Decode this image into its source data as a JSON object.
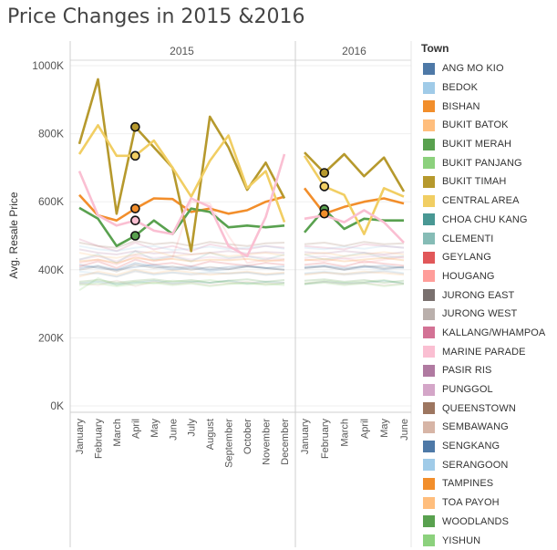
{
  "title": "Price Changes in 2015 &2016",
  "chart_data": {
    "type": "line",
    "title": "Price Changes in 2015 &2016",
    "ylabel": "Avg. Resale Price",
    "xlabel": "",
    "ylim": [
      0,
      1000000
    ],
    "yticks": [
      {
        "value": 0,
        "label": "0K"
      },
      {
        "value": 200000,
        "label": "200K"
      },
      {
        "value": 400000,
        "label": "400K"
      },
      {
        "value": 600000,
        "label": "600K"
      },
      {
        "value": 800000,
        "label": "800K"
      },
      {
        "value": 1000000,
        "label": "1000K"
      }
    ],
    "grid": true,
    "legend_position": "right",
    "legend_title": "Town",
    "panels": [
      {
        "label": "2015",
        "months": [
          "January",
          "February",
          "March",
          "April",
          "May",
          "June",
          "July",
          "August",
          "September",
          "October",
          "November",
          "December"
        ]
      },
      {
        "label": "2016",
        "months": [
          "January",
          "February",
          "March",
          "April",
          "May",
          "June"
        ]
      }
    ],
    "series": [
      {
        "name": "ANG MO KIO",
        "color": "#4e79a7",
        "values": [
          [
            415000,
            405000,
            400000,
            420000,
            410000,
            400000,
            405000,
            398000,
            402000,
            410000,
            405000,
            400000
          ],
          [
            405000,
            410000,
            400000,
            408000,
            412000,
            405000
          ]
        ]
      },
      {
        "name": "BEDOK",
        "color": "#a0cbe8",
        "values": [
          [
            395000,
            390000,
            380000,
            398000,
            385000,
            392000,
            388000,
            395000,
            390000,
            392000,
            385000,
            388000
          ],
          [
            390000,
            395000,
            388000,
            392000,
            398000,
            390000
          ]
        ]
      },
      {
        "name": "BISHAN",
        "color": "#f28e2b",
        "values": [
          [
            620000,
            560000,
            545000,
            580000,
            610000,
            608000,
            570000,
            580000,
            565000,
            575000,
            600000,
            615000
          ],
          [
            640000,
            565000,
            585000,
            600000,
            610000,
            595000
          ]
        ]
      },
      {
        "name": "BUKIT BATOK",
        "color": "#ffbe7d",
        "values": [
          [
            380000,
            395000,
            385000,
            400000,
            390000,
            398000,
            392000,
            385000,
            390000,
            395000,
            388000,
            392000
          ],
          [
            385000,
            392000,
            388000,
            395000,
            390000,
            385000
          ]
        ]
      },
      {
        "name": "BUKIT MERAH",
        "color": "#59a14f",
        "values": [
          [
            582000,
            550000,
            470000,
            500000,
            545000,
            505000,
            580000,
            570000,
            525000,
            530000,
            525000,
            530000
          ],
          [
            510000,
            578000,
            520000,
            550000,
            545000,
            545000
          ]
        ]
      },
      {
        "name": "BUKIT PANJANG",
        "color": "#8cd17d",
        "values": [
          [
            340000,
            375000,
            355000,
            365000,
            360000,
            368000,
            365000,
            370000,
            362000,
            358000,
            360000,
            355000
          ],
          [
            360000,
            368000,
            362000,
            365000,
            370000,
            360000
          ]
        ]
      },
      {
        "name": "BUKIT TIMAH",
        "color": "#b6992d",
        "values": [
          [
            770000,
            960000,
            565000,
            820000,
            760000,
            700000,
            455000,
            850000,
            760000,
            635000,
            715000,
            610000
          ],
          [
            745000,
            685000,
            740000,
            675000,
            730000,
            630000
          ]
        ]
      },
      {
        "name": "CENTRAL AREA",
        "color": "#f1ce63",
        "values": [
          [
            740000,
            825000,
            735000,
            735000,
            780000,
            700000,
            615000,
            720000,
            795000,
            640000,
            690000,
            540000
          ],
          [
            735000,
            645000,
            620000,
            505000,
            640000,
            615000
          ]
        ]
      },
      {
        "name": "CHOA CHU KANG",
        "color": "#499894",
        "values": [
          [
            360000,
            365000,
            358000,
            362000,
            368000,
            360000,
            365000,
            362000,
            368000,
            360000,
            365000,
            362000
          ],
          [
            358000,
            365000,
            360000,
            362000,
            368000,
            360000
          ]
        ]
      },
      {
        "name": "CLEMENTI",
        "color": "#86bcb6",
        "values": [
          [
            430000,
            445000,
            420000,
            455000,
            430000,
            440000,
            425000,
            450000,
            435000,
            440000,
            430000,
            445000
          ],
          [
            445000,
            430000,
            440000,
            450000,
            435000,
            440000
          ]
        ]
      },
      {
        "name": "GEYLANG",
        "color": "#e15759",
        "values": [
          [
            410000,
            425000,
            405000,
            430000,
            415000,
            420000,
            410000,
            425000,
            418000,
            412000,
            420000,
            415000
          ],
          [
            415000,
            420000,
            410000,
            425000,
            418000,
            412000
          ]
        ]
      },
      {
        "name": "HOUGANG",
        "color": "#ff9d9a",
        "values": [
          [
            420000,
            430000,
            415000,
            440000,
            425000,
            435000,
            600000,
            595000,
            500000,
            420000,
            430000,
            425000
          ],
          [
            430000,
            425000,
            435000,
            420000,
            430000,
            438000
          ]
        ]
      },
      {
        "name": "JURONG EAST",
        "color": "#79706e",
        "values": [
          [
            400000,
            410000,
            395000,
            415000,
            405000,
            410000,
            400000,
            408000,
            402000,
            410000,
            405000,
            400000
          ],
          [
            405000,
            410000,
            400000,
            412000,
            405000,
            408000
          ]
        ]
      },
      {
        "name": "JURONG WEST",
        "color": "#bab0ac",
        "values": [
          [
            385000,
            390000,
            380000,
            395000,
            388000,
            392000,
            385000,
            390000,
            388000,
            392000,
            385000,
            390000
          ],
          [
            388000,
            392000,
            385000,
            390000,
            395000,
            388000
          ]
        ]
      },
      {
        "name": "KALLANG/WHAMPOA",
        "color": "#d37295",
        "values": [
          [
            490000,
            470000,
            455000,
            480000,
            460000,
            470000,
            455000,
            475000,
            465000,
            460000,
            470000,
            465000
          ],
          [
            470000,
            465000,
            460000,
            475000,
            470000,
            465000
          ]
        ]
      },
      {
        "name": "MARINE PARADE",
        "color": "#fabfd2",
        "values": [
          [
            690000,
            560000,
            530000,
            545000,
            515000,
            505000,
            610000,
            585000,
            470000,
            440000,
            555000,
            740000
          ],
          [
            550000,
            560000,
            540000,
            575000,
            540000,
            480000
          ]
        ]
      },
      {
        "name": "PASIR RIS",
        "color": "#b07aa1",
        "values": [
          [
            460000,
            450000,
            445000,
            455000,
            448000,
            452000,
            445000,
            450000,
            455000,
            448000,
            452000,
            450000
          ],
          [
            452000,
            448000,
            455000,
            450000,
            445000,
            452000
          ]
        ]
      },
      {
        "name": "PUNGGOL",
        "color": "#d4a6c8",
        "values": [
          [
            430000,
            440000,
            425000,
            445000,
            435000,
            440000,
            430000,
            438000,
            432000,
            440000,
            435000,
            432000
          ],
          [
            435000,
            440000,
            432000,
            438000,
            442000,
            435000
          ]
        ]
      },
      {
        "name": "QUEENSTOWN",
        "color": "#9d7660",
        "values": [
          [
            480000,
            470000,
            465000,
            485000,
            475000,
            480000,
            470000,
            482000,
            475000,
            470000,
            478000,
            480000
          ],
          [
            475000,
            480000,
            470000,
            482000,
            475000,
            478000
          ]
        ]
      },
      {
        "name": "SEMBAWANG",
        "color": "#d7b5a6",
        "values": [
          [
            360000,
            355000,
            368000,
            352000,
            365000,
            358000,
            362000,
            355000,
            360000,
            365000,
            358000,
            362000
          ],
          [
            360000,
            365000,
            358000,
            362000,
            355000,
            360000
          ]
        ]
      },
      {
        "name": "SENGKANG",
        "color": "#4e79a7",
        "values": [
          [
            405000,
            412000,
            400000,
            408000,
            415000,
            405000,
            410000,
            402000,
            408000,
            412000,
            405000,
            410000
          ],
          [
            408000,
            412000,
            405000,
            410000,
            402000,
            408000
          ]
        ]
      },
      {
        "name": "SERANGOON",
        "color": "#a0cbe8",
        "values": [
          [
            470000,
            460000,
            455000,
            465000,
            470000,
            458000,
            462000,
            468000,
            460000,
            465000,
            470000,
            462000
          ],
          [
            465000,
            460000,
            468000,
            462000,
            470000,
            465000
          ]
        ]
      },
      {
        "name": "TAMPINES",
        "color": "#f28e2b",
        "values": [
          [
            425000,
            430000,
            420000,
            435000,
            428000,
            432000,
            425000,
            430000,
            428000,
            432000,
            425000,
            430000
          ],
          [
            428000,
            432000,
            425000,
            430000,
            435000,
            428000
          ]
        ]
      },
      {
        "name": "TOA PAYOH",
        "color": "#ffbe7d",
        "values": [
          [
            450000,
            440000,
            435000,
            445000,
            455000,
            440000,
            445000,
            450000,
            440000,
            445000,
            450000,
            442000
          ],
          [
            445000,
            450000,
            440000,
            445000,
            452000,
            445000
          ]
        ]
      },
      {
        "name": "WOODLANDS",
        "color": "#59a14f",
        "values": [
          [
            365000,
            370000,
            362000,
            368000,
            372000,
            365000,
            370000,
            362000,
            368000,
            372000,
            365000,
            370000
          ],
          [
            368000,
            372000,
            365000,
            370000,
            362000,
            368000
          ]
        ]
      },
      {
        "name": "YISHUN",
        "color": "#8cd17d",
        "values": [
          [
            355000,
            360000,
            352000,
            358000,
            362000,
            355000,
            360000,
            352000,
            358000,
            362000,
            355000,
            360000
          ],
          [
            358000,
            362000,
            355000,
            360000,
            352000,
            358000
          ]
        ]
      }
    ],
    "highlighted_series": [
      "BISHAN",
      "BUKIT MERAH",
      "BUKIT TIMAH",
      "CENTRAL AREA",
      "MARINE PARADE"
    ],
    "markers": [
      {
        "series": "BUKIT TIMAH",
        "panel": 0,
        "month": 3
      },
      {
        "series": "CENTRAL AREA",
        "panel": 0,
        "month": 3
      },
      {
        "series": "BISHAN",
        "panel": 0,
        "month": 3
      },
      {
        "series": "MARINE PARADE",
        "panel": 0,
        "month": 3
      },
      {
        "series": "BUKIT MERAH",
        "panel": 0,
        "month": 3
      },
      {
        "series": "BUKIT TIMAH",
        "panel": 1,
        "month": 1
      },
      {
        "series": "CENTRAL AREA",
        "panel": 1,
        "month": 1
      },
      {
        "series": "BUKIT MERAH",
        "panel": 1,
        "month": 1
      },
      {
        "series": "BISHAN",
        "panel": 1,
        "month": 1
      }
    ]
  }
}
